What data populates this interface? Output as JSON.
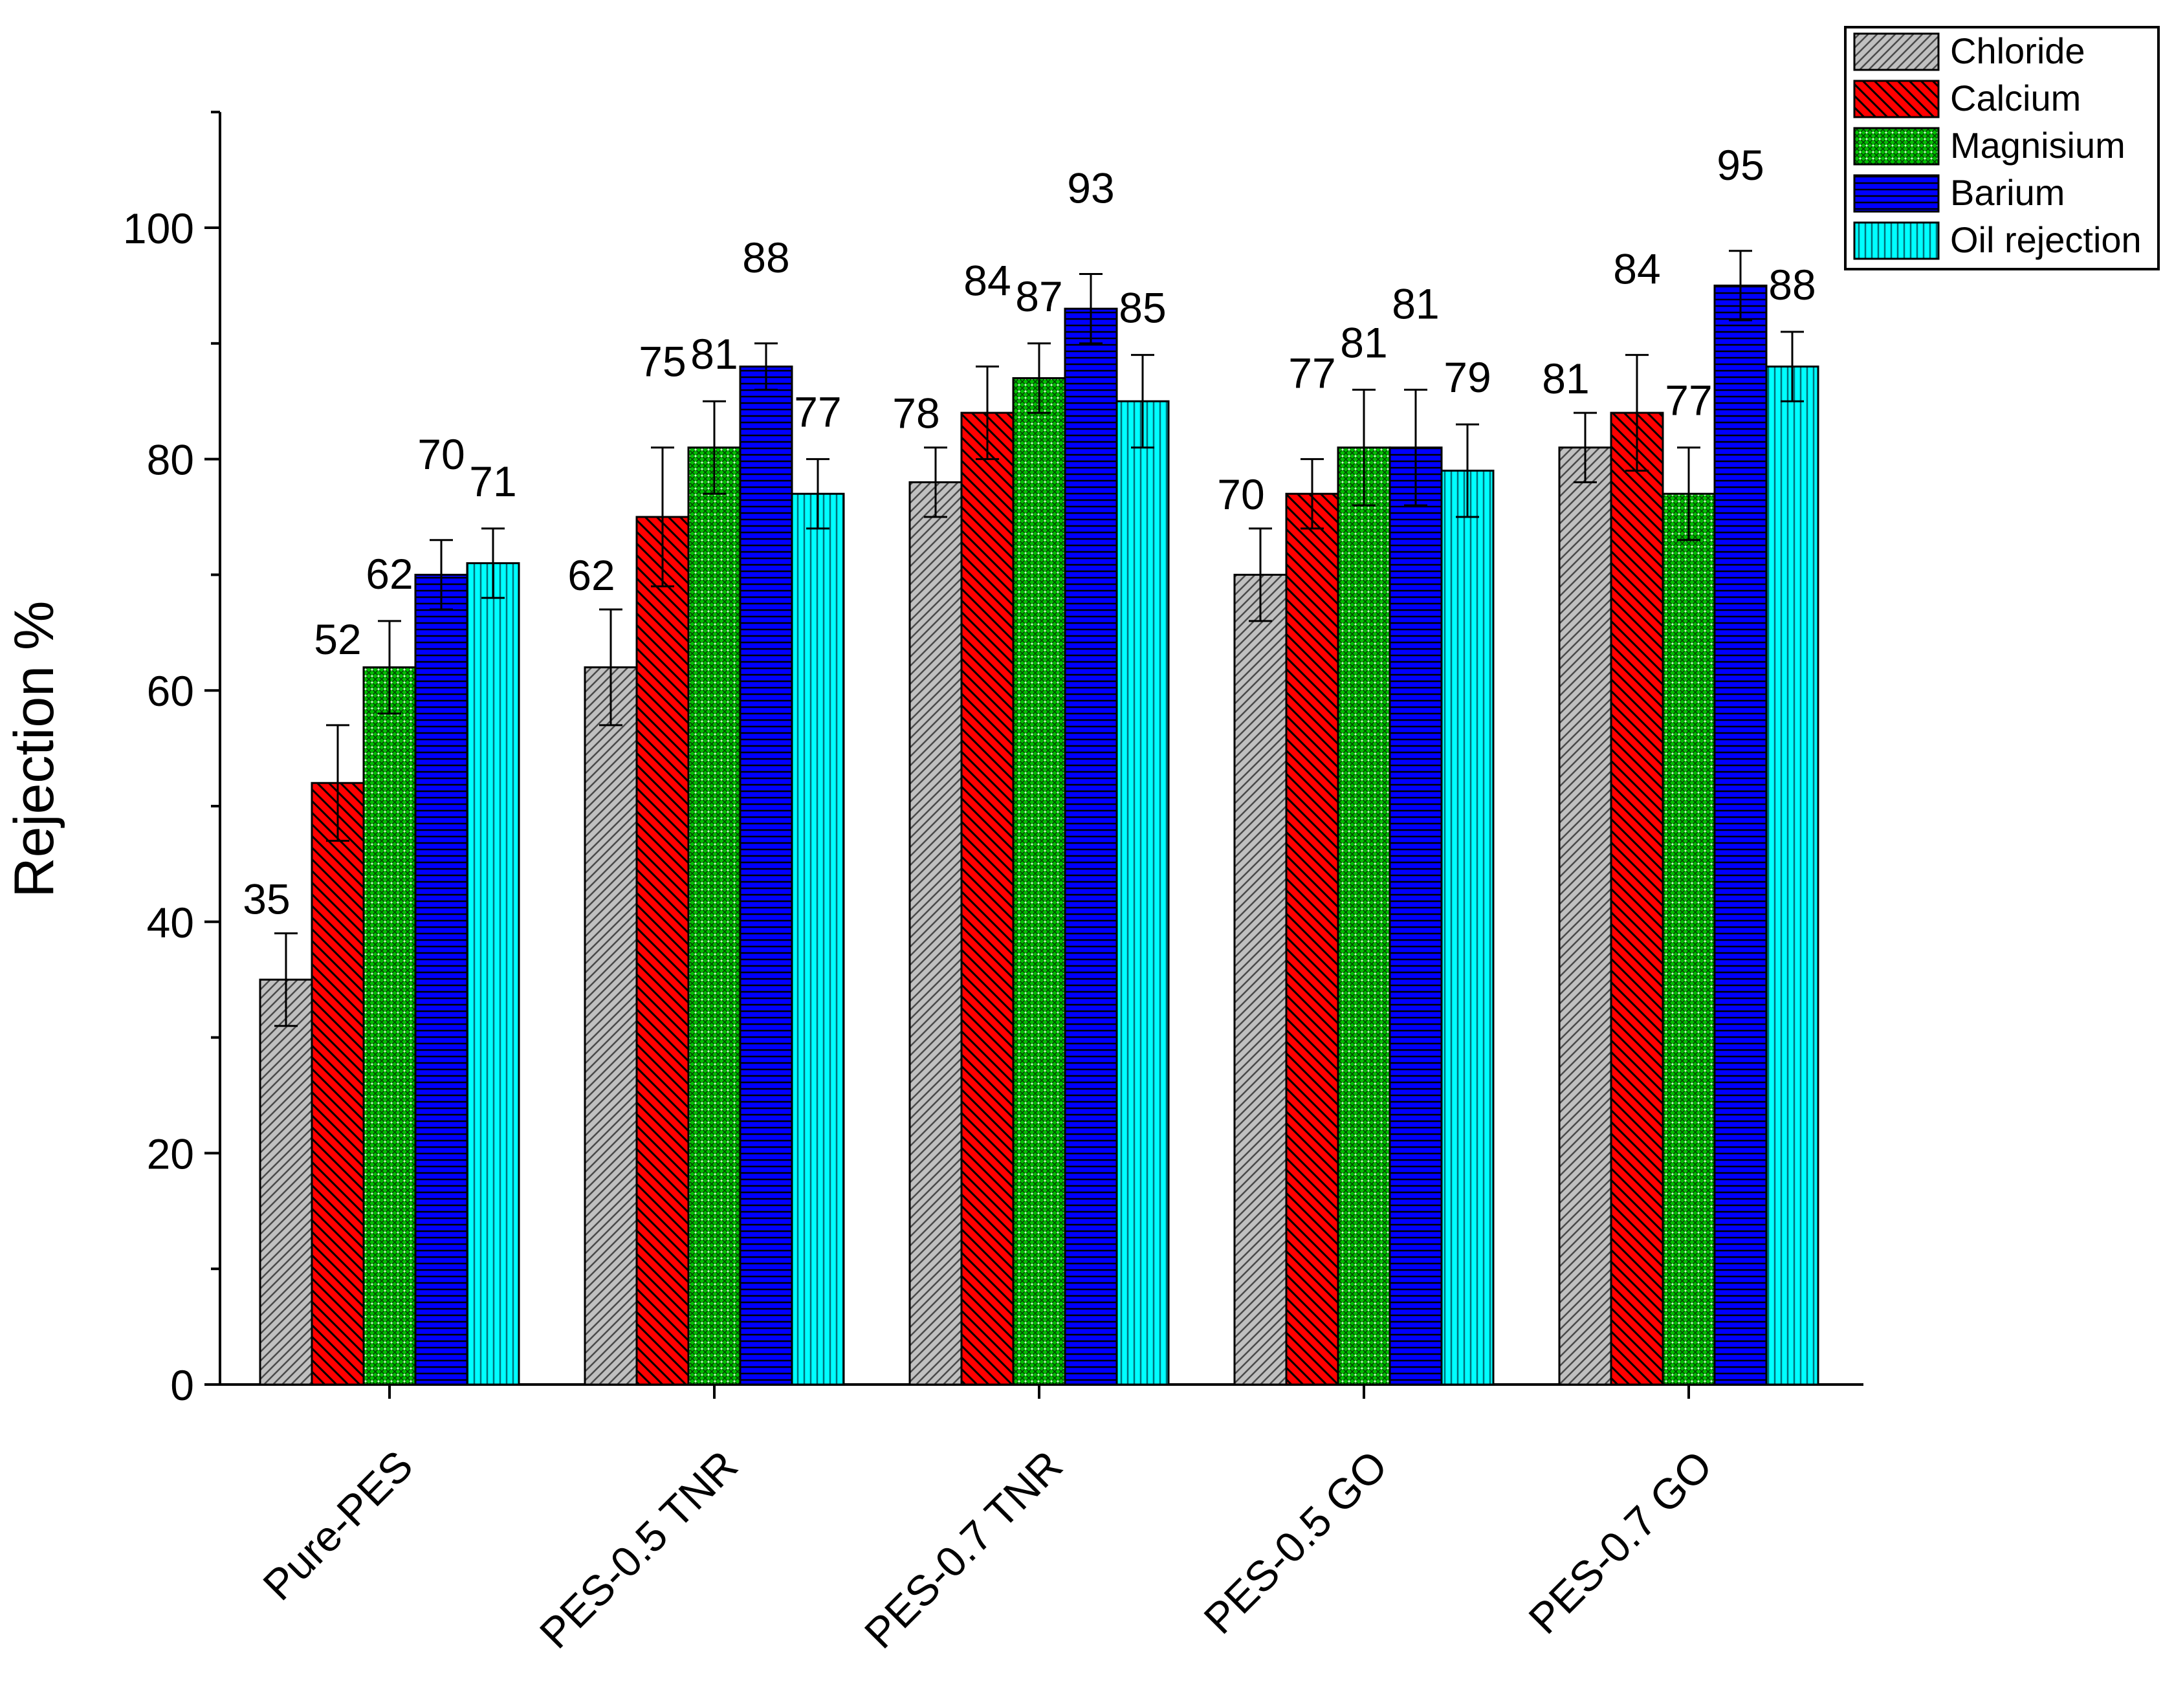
{
  "chart_data": {
    "type": "bar",
    "title": "",
    "xlabel": "",
    "ylabel": "Rejection %",
    "ylim": [
      0,
      110
    ],
    "yticks": [
      0,
      20,
      40,
      60,
      80,
      100
    ],
    "grid": false,
    "legend_position": "top-right",
    "categories": [
      "Pure-PES",
      "PES-0.5 TNR",
      "PES-0.7 TNR",
      "PES-0.5 GO",
      "PES-0.7 GO"
    ],
    "series": [
      {
        "name": "Chloride",
        "color": "#c0c0c0",
        "pattern": "diagonal-up",
        "values": [
          35,
          62,
          78,
          70,
          81
        ],
        "errors": [
          4,
          5,
          3,
          4,
          3
        ]
      },
      {
        "name": "Calcium",
        "color": "#ff0000",
        "pattern": "diagonal-down",
        "values": [
          52,
          75,
          84,
          77,
          84
        ],
        "errors": [
          5,
          6,
          4,
          3,
          5
        ]
      },
      {
        "name": "Magnisium",
        "color": "#00c000",
        "pattern": "crosshatch-dots",
        "values": [
          62,
          81,
          87,
          81,
          77
        ],
        "errors": [
          4,
          4,
          3,
          5,
          4
        ]
      },
      {
        "name": "Barium",
        "color": "#0000ff",
        "pattern": "horizontal",
        "values": [
          70,
          88,
          93,
          81,
          95
        ],
        "errors": [
          3,
          2,
          3,
          5,
          3
        ]
      },
      {
        "name": "Oil rejection",
        "color": "#00ffff",
        "pattern": "vertical",
        "values": [
          71,
          77,
          85,
          79,
          88
        ],
        "errors": [
          3,
          3,
          4,
          4,
          3
        ]
      }
    ]
  }
}
